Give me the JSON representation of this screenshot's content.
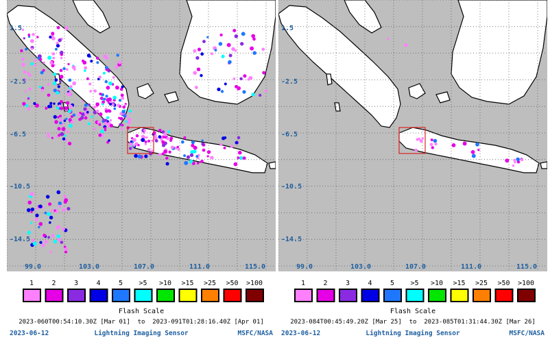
{
  "colors": {
    "ocean": "#bebebe",
    "land": "#ffffff",
    "coast": "#000000",
    "grid": "#5a5a5a",
    "label": "#1f5fa0",
    "highlight_box": "#dd2222"
  },
  "panels": [
    {
      "lat_labels": [
        "1.5",
        "-2.5",
        "-6.5",
        "-10.5",
        "-14.5"
      ],
      "lon_labels": [
        "99.0",
        "103.0",
        "107.0",
        "111.0",
        "115.0"
      ],
      "range_text": "2023-060T00:54:10.30Z [Mar 01]  to  2023-091T01:28:16.40Z [Apr 01]",
      "flash_density": "high"
    },
    {
      "lat_labels": [
        "1.5",
        "-2.5",
        "-6.5",
        "-10.5",
        "-14.5"
      ],
      "lon_labels": [
        "99.0",
        "103.0",
        "107.0",
        "111.0",
        "115.0"
      ],
      "range_text": "2023-084T00:45:49.20Z [Mar 25]  to  2023-085T01:31:44.30Z [Mar 26]",
      "flash_density": "low"
    }
  ],
  "flash_scale": {
    "title": "Flash Scale",
    "bins": [
      {
        "label": "1",
        "color": "#ff80ff"
      },
      {
        "label": "2",
        "color": "#e600e6"
      },
      {
        "label": "3",
        "color": "#8a2be2"
      },
      {
        "label": "4",
        "color": "#0000e6"
      },
      {
        "label": "5",
        "color": "#1e78ff"
      },
      {
        "label": ">5",
        "color": "#00ffff"
      },
      {
        "label": ">10",
        "color": "#00e600"
      },
      {
        "label": ">15",
        "color": "#ffff00"
      },
      {
        "label": ">25",
        "color": "#ff8000"
      },
      {
        "label": ">50",
        "color": "#ff0000"
      },
      {
        "label": ">100",
        "color": "#800000"
      }
    ]
  },
  "footer": {
    "date": "2023-06-12",
    "sensor": "Lightning Imaging Sensor",
    "org": "MSFC/NASA"
  }
}
